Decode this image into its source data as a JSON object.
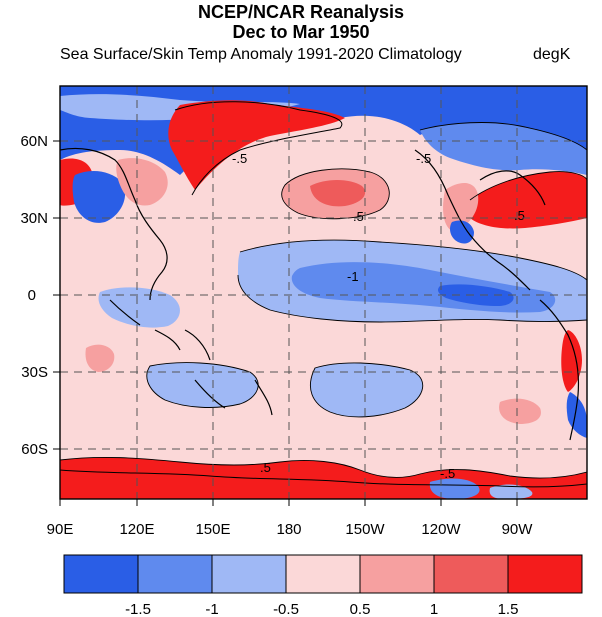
{
  "title_line1": "NCEP/NCAR Reanalysis",
  "title_line2": "Dec to Mar 1950",
  "subtitle": "Sea Surface/Skin Temp Anomaly  1991-2020 Climatology",
  "units": "degK",
  "x_tick_labels": [
    "90E",
    "120E",
    "150E",
    "180",
    "150W",
    "120W",
    "90W"
  ],
  "y_tick_labels": [
    "60N",
    "30N",
    "0",
    "30S",
    "60S"
  ],
  "contour_labels": [
    "-.5",
    "-.5",
    ".5",
    "-1",
    ".5",
    ".5",
    "-.5"
  ],
  "colorbar": {
    "colors": [
      "#2a5ee6",
      "#5f8aee",
      "#9fb8f5",
      "#fbd8d8",
      "#f6a0a0",
      "#ee5b5b",
      "#f41c1c"
    ],
    "tick_labels": [
      "-1.5",
      "-1",
      "-0.5",
      "0.5",
      "1",
      "1.5"
    ]
  },
  "colors": {
    "strong_neg": "#2a5ee6",
    "mod_neg": "#5f8aee",
    "weak_neg": "#9fb8f5",
    "weak_pos": "#fbd8d8",
    "mod_pos": "#f6a0a0",
    "pos": "#ee5b5b",
    "strong_pos": "#f41c1c"
  }
}
